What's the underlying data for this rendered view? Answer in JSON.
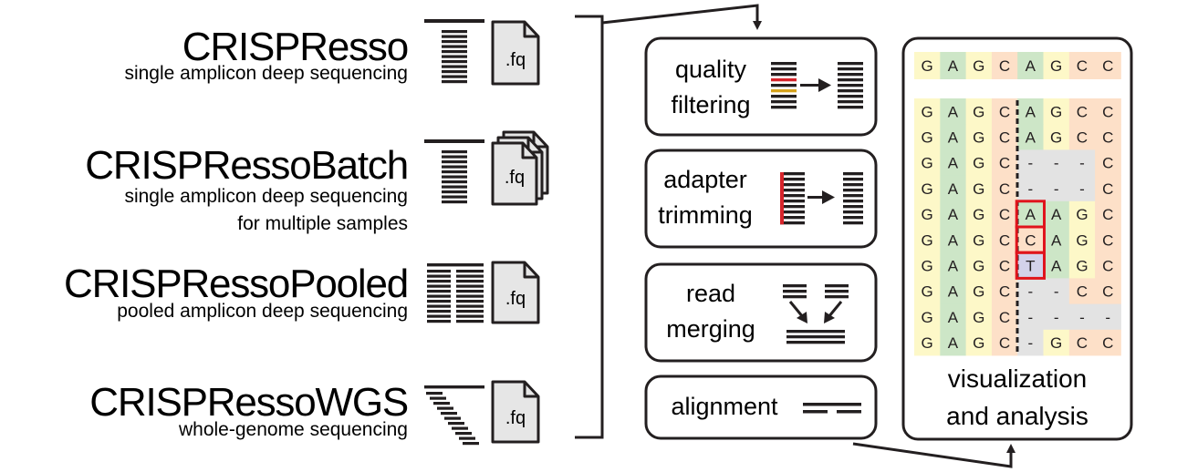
{
  "tools": [
    {
      "name": "CRISPResso",
      "desc_lines": [
        "single amplicon deep sequencing"
      ],
      "input_icon": "single-fastq-file-icon"
    },
    {
      "name": "CRISPRessoBatch",
      "desc_lines": [
        "single amplicon deep sequencing",
        "for multiple samples"
      ],
      "input_icon": "stacked-fastq-files-icon"
    },
    {
      "name": "CRISPRessoPooled",
      "desc_lines": [
        "pooled amplicon deep sequencing"
      ],
      "input_icon": "single-fastq-file-icon"
    },
    {
      "name": "CRISPRessoWGS",
      "desc_lines": [
        "whole-genome sequencing"
      ],
      "input_icon": "single-fastq-file-icon"
    }
  ],
  "file_label": ".fq",
  "steps": [
    {
      "lines": [
        "quality",
        "filtering"
      ],
      "icon": "quality-filter-icon"
    },
    {
      "lines": [
        "adapter",
        "trimming"
      ],
      "icon": "adapter-trim-icon"
    },
    {
      "lines": [
        "read",
        "merging"
      ],
      "icon": "read-merge-icon"
    },
    {
      "lines": [
        "alignment"
      ],
      "icon": "alignment-icon"
    }
  ],
  "visualization": {
    "lines": [
      "visualization",
      "and analysis"
    ],
    "reference": [
      "G",
      "A",
      "G",
      "C",
      "A",
      "G",
      "C",
      "C"
    ],
    "alleles": [
      [
        "G",
        "A",
        "G",
        "C",
        "A",
        "G",
        "C",
        "C"
      ],
      [
        "G",
        "A",
        "G",
        "C",
        "A",
        "G",
        "C",
        "C"
      ],
      [
        "G",
        "A",
        "G",
        "C",
        "-",
        "-",
        "-",
        "C"
      ],
      [
        "G",
        "A",
        "G",
        "C",
        "-",
        "-",
        "-",
        "C"
      ],
      [
        "G",
        "A",
        "G",
        "C",
        "A",
        "A",
        "G",
        "C"
      ],
      [
        "G",
        "A",
        "G",
        "C",
        "C",
        "A",
        "G",
        "C"
      ],
      [
        "G",
        "A",
        "G",
        "C",
        "T",
        "A",
        "G",
        "C"
      ],
      [
        "G",
        "A",
        "G",
        "C",
        "-",
        "-",
        "C",
        "C"
      ],
      [
        "G",
        "A",
        "G",
        "C",
        "-",
        "-",
        "-",
        "-"
      ],
      [
        "G",
        "A",
        "G",
        "C",
        "-",
        "G",
        "C",
        "C"
      ]
    ],
    "insertion_column": 4,
    "insertion_rows": [
      4,
      5,
      6
    ],
    "colors": {
      "G": "#fdf8c8",
      "A": "#cde6c7",
      "C": "#fde0c8",
      "T": "#d3d2ea",
      "-": "#e3e3e3",
      "insertion_box": "#e0141c"
    }
  },
  "colors": {
    "red_read": "#d6242b",
    "yellow_read": "#d5a21c",
    "box_stroke": "#231f20"
  }
}
